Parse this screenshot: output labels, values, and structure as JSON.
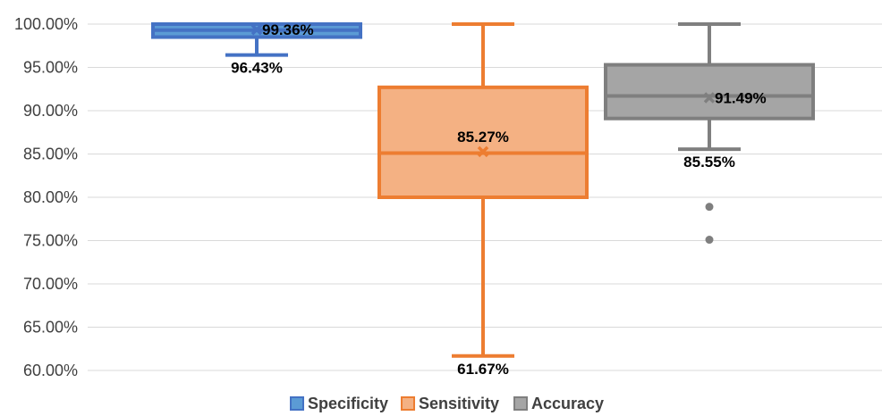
{
  "chart_data": {
    "type": "box",
    "title": "",
    "xlabel": "",
    "ylabel": "",
    "ylim": [
      0.6,
      1.0
    ],
    "yticks": [
      "60.00%",
      "65.00%",
      "70.00%",
      "75.00%",
      "80.00%",
      "85.00%",
      "90.00%",
      "95.00%",
      "100.00%"
    ],
    "ytick_values": [
      0.6,
      0.65,
      0.7,
      0.75,
      0.8,
      0.85,
      0.9,
      0.95,
      1.0
    ],
    "grid": true,
    "legend_position": "bottom",
    "series": [
      {
        "name": "Specificity",
        "color": "#4472C4",
        "fill": "#5B9BD5",
        "min": 0.9643,
        "q1": 0.985,
        "median": 0.993,
        "q3": 1.0,
        "max": 1.0,
        "mean": 0.9936,
        "mean_label": "99.36%",
        "min_label": "96.43%",
        "outliers": []
      },
      {
        "name": "Sensitivity",
        "color": "#ED7D31",
        "fill": "#F4B183",
        "min": 0.6167,
        "q1": 0.8,
        "median": 0.851,
        "q3": 0.927,
        "max": 1.0,
        "mean": 0.8527,
        "mean_label": "85.27%",
        "min_label": "61.67%",
        "outliers": []
      },
      {
        "name": "Accuracy",
        "color": "#7F7F7F",
        "fill": "#A5A5A5",
        "min": 0.8555,
        "q1": 0.891,
        "median": 0.917,
        "q3": 0.953,
        "max": 1.0,
        "mean": 0.9149,
        "mean_label": "91.49%",
        "min_label": "85.55%",
        "outliers": [
          0.789,
          0.751
        ]
      }
    ]
  }
}
